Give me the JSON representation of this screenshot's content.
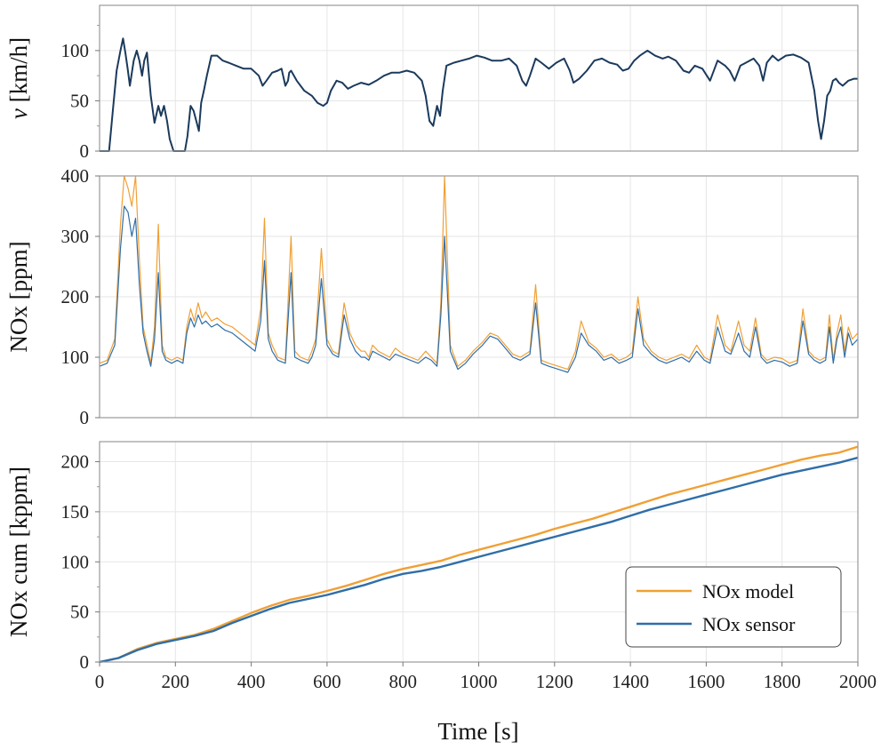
{
  "colors": {
    "model": "#f0a035",
    "sensor": "#2f6ea8",
    "speed": "#1b3a5c",
    "frame": "#9a9a9a",
    "grid": "#e6e6e6"
  },
  "chart_data": [
    {
      "type": "line",
      "ylabel_var": "v",
      "ylabel_unit": " [km/h]",
      "xlim": [
        0,
        2000
      ],
      "ylim": [
        0,
        145
      ],
      "yticks": [
        "0",
        "50",
        "100"
      ],
      "yticks_values": [
        0,
        50,
        100
      ],
      "grid": true,
      "series": [
        {
          "x": [
            0,
            25,
            35,
            45,
            55,
            62,
            68,
            74,
            80,
            90,
            98,
            105,
            112,
            118,
            125,
            135,
            145,
            155,
            162,
            170,
            178,
            185,
            195,
            210,
            225,
            232,
            240,
            248,
            255,
            262,
            268,
            275,
            283,
            295,
            310,
            325,
            340,
            360,
            380,
            400,
            420,
            430,
            440,
            455,
            470,
            480,
            490,
            497,
            500,
            505,
            520,
            540,
            560,
            575,
            590,
            600,
            610,
            625,
            640,
            655,
            670,
            690,
            710,
            730,
            750,
            770,
            790,
            810,
            830,
            850,
            860,
            870,
            880,
            890,
            898,
            905,
            915,
            935,
            955,
            975,
            995,
            1015,
            1035,
            1060,
            1080,
            1100,
            1115,
            1125,
            1135,
            1150,
            1165,
            1185,
            1205,
            1225,
            1240,
            1250,
            1265,
            1285,
            1305,
            1325,
            1345,
            1365,
            1380,
            1395,
            1410,
            1425,
            1445,
            1465,
            1485,
            1500,
            1520,
            1540,
            1555,
            1570,
            1590,
            1610,
            1630,
            1650,
            1662,
            1675,
            1690,
            1705,
            1725,
            1740,
            1750,
            1760,
            1775,
            1790,
            1810,
            1830,
            1850,
            1870,
            1885,
            1895,
            1903,
            1911,
            1919,
            1927,
            1934,
            1942,
            1950,
            1960,
            1975,
            1990,
            2000
          ],
          "y": [
            0,
            0,
            40,
            80,
            100,
            112,
            98,
            82,
            65,
            90,
            100,
            90,
            75,
            90,
            98,
            55,
            28,
            45,
            35,
            45,
            30,
            12,
            0,
            0,
            0,
            15,
            45,
            40,
            30,
            20,
            48,
            60,
            75,
            95,
            95,
            90,
            88,
            85,
            82,
            82,
            75,
            65,
            70,
            78,
            80,
            82,
            65,
            70,
            78,
            80,
            70,
            60,
            55,
            48,
            45,
            48,
            60,
            70,
            68,
            62,
            65,
            68,
            66,
            70,
            75,
            78,
            78,
            80,
            78,
            70,
            55,
            30,
            25,
            45,
            35,
            60,
            85,
            88,
            90,
            92,
            95,
            93,
            90,
            90,
            92,
            85,
            70,
            65,
            75,
            92,
            88,
            82,
            88,
            92,
            80,
            68,
            72,
            80,
            90,
            92,
            88,
            86,
            80,
            82,
            90,
            95,
            100,
            95,
            92,
            94,
            90,
            80,
            78,
            85,
            82,
            70,
            90,
            85,
            80,
            70,
            85,
            88,
            92,
            85,
            70,
            88,
            95,
            90,
            95,
            96,
            93,
            88,
            60,
            30,
            12,
            30,
            55,
            60,
            70,
            72,
            68,
            65,
            70,
            72,
            72
          ]
        }
      ]
    },
    {
      "type": "line",
      "ylabel": "NOx [ppm]",
      "xlim": [
        0,
        2000
      ],
      "ylim": [
        0,
        400
      ],
      "yticks": [
        "0",
        "100",
        "200",
        "300",
        "400"
      ],
      "yticks_values": [
        0,
        100,
        200,
        300,
        400
      ],
      "grid": true,
      "series": [
        {
          "name": "NOx model",
          "x": [
            0,
            20,
            40,
            55,
            65,
            75,
            85,
            95,
            105,
            115,
            125,
            135,
            145,
            155,
            165,
            175,
            190,
            205,
            220,
            230,
            240,
            250,
            260,
            270,
            280,
            295,
            310,
            330,
            350,
            370,
            390,
            410,
            425,
            435,
            445,
            455,
            470,
            490,
            505,
            515,
            530,
            550,
            560,
            570,
            585,
            600,
            615,
            630,
            645,
            660,
            675,
            690,
            700,
            710,
            720,
            735,
            750,
            765,
            780,
            800,
            820,
            840,
            860,
            875,
            890,
            900,
            910,
            925,
            945,
            965,
            985,
            1010,
            1030,
            1050,
            1070,
            1090,
            1110,
            1135,
            1150,
            1165,
            1185,
            1210,
            1235,
            1255,
            1270,
            1290,
            1310,
            1330,
            1350,
            1370,
            1390,
            1405,
            1420,
            1435,
            1455,
            1475,
            1495,
            1515,
            1535,
            1555,
            1575,
            1595,
            1610,
            1630,
            1650,
            1665,
            1685,
            1700,
            1715,
            1730,
            1745,
            1760,
            1780,
            1800,
            1820,
            1840,
            1855,
            1870,
            1885,
            1900,
            1915,
            1925,
            1935,
            1945,
            1955,
            1965,
            1975,
            1985,
            2000
          ],
          "y": [
            90,
            95,
            130,
            320,
            400,
            380,
            350,
            400,
            260,
            150,
            120,
            90,
            150,
            320,
            120,
            100,
            95,
            100,
            95,
            150,
            180,
            160,
            190,
            165,
            175,
            160,
            165,
            155,
            150,
            140,
            130,
            120,
            180,
            330,
            140,
            120,
            100,
            95,
            300,
            110,
            100,
            95,
            110,
            130,
            280,
            130,
            110,
            105,
            190,
            140,
            120,
            110,
            110,
            100,
            120,
            110,
            105,
            100,
            115,
            105,
            100,
            95,
            110,
            100,
            90,
            190,
            400,
            120,
            85,
            95,
            110,
            125,
            140,
            135,
            120,
            105,
            100,
            110,
            220,
            95,
            90,
            85,
            80,
            110,
            160,
            125,
            115,
            100,
            105,
            95,
            100,
            108,
            200,
            130,
            110,
            100,
            95,
            100,
            105,
            98,
            120,
            100,
            95,
            170,
            120,
            110,
            160,
            120,
            110,
            165,
            105,
            95,
            100,
            98,
            90,
            95,
            180,
            110,
            100,
            95,
            100,
            170,
            95,
            140,
            170,
            110,
            150,
            130,
            140
          ]
        },
        {
          "name": "NOx sensor",
          "x": [
            0,
            20,
            40,
            55,
            65,
            75,
            85,
            95,
            105,
            115,
            125,
            135,
            145,
            155,
            165,
            175,
            190,
            205,
            220,
            230,
            240,
            250,
            260,
            270,
            280,
            295,
            310,
            330,
            350,
            370,
            390,
            410,
            425,
            435,
            445,
            455,
            470,
            490,
            505,
            515,
            530,
            550,
            560,
            570,
            585,
            600,
            615,
            630,
            645,
            660,
            675,
            690,
            700,
            710,
            720,
            735,
            750,
            765,
            780,
            800,
            820,
            840,
            860,
            875,
            890,
            900,
            910,
            925,
            945,
            965,
            985,
            1010,
            1030,
            1050,
            1070,
            1090,
            1110,
            1135,
            1150,
            1165,
            1185,
            1210,
            1235,
            1255,
            1270,
            1290,
            1310,
            1330,
            1350,
            1370,
            1390,
            1405,
            1420,
            1435,
            1455,
            1475,
            1495,
            1515,
            1535,
            1555,
            1575,
            1595,
            1610,
            1630,
            1650,
            1665,
            1685,
            1700,
            1715,
            1730,
            1745,
            1760,
            1780,
            1800,
            1820,
            1840,
            1855,
            1870,
            1885,
            1900,
            1915,
            1925,
            1935,
            1945,
            1955,
            1965,
            1975,
            1985,
            2000
          ],
          "y": [
            85,
            90,
            120,
            280,
            350,
            340,
            300,
            330,
            220,
            140,
            110,
            85,
            130,
            240,
            110,
            95,
            90,
            95,
            90,
            140,
            165,
            150,
            170,
            155,
            160,
            150,
            155,
            145,
            140,
            130,
            120,
            110,
            160,
            260,
            130,
            110,
            95,
            90,
            240,
            100,
            95,
            90,
            100,
            120,
            230,
            120,
            105,
            100,
            170,
            130,
            110,
            100,
            100,
            95,
            110,
            105,
            100,
            95,
            105,
            100,
            95,
            90,
            100,
            95,
            85,
            170,
            300,
            110,
            80,
            90,
            105,
            120,
            135,
            130,
            115,
            100,
            95,
            105,
            190,
            90,
            85,
            80,
            75,
            100,
            140,
            120,
            110,
            95,
            100,
            90,
            95,
            100,
            180,
            120,
            105,
            95,
            90,
            95,
            100,
            92,
            110,
            95,
            90,
            150,
            110,
            105,
            140,
            110,
            100,
            150,
            100,
            90,
            95,
            92,
            85,
            90,
            160,
            105,
            95,
            90,
            95,
            150,
            90,
            130,
            150,
            100,
            140,
            120,
            130
          ]
        }
      ]
    },
    {
      "type": "line",
      "ylabel": "NOx cum [kppm]",
      "xlabel": "Time [s]",
      "xlim": [
        0,
        2000
      ],
      "ylim": [
        0,
        220
      ],
      "xticks": [
        "0",
        "200",
        "400",
        "600",
        "800",
        "1000",
        "1200",
        "1400",
        "1600",
        "1800",
        "2000"
      ],
      "xticks_values": [
        0,
        200,
        400,
        600,
        800,
        1000,
        1200,
        1400,
        1600,
        1800,
        2000
      ],
      "yticks": [
        "0",
        "50",
        "100",
        "150",
        "200"
      ],
      "yticks_values": [
        0,
        50,
        100,
        150,
        200
      ],
      "grid": true,
      "legend": "bottom-right",
      "series": [
        {
          "name": "NOx model",
          "x": [
            0,
            50,
            100,
            150,
            200,
            250,
            300,
            350,
            400,
            450,
            500,
            550,
            600,
            650,
            700,
            750,
            800,
            850,
            900,
            950,
            1000,
            1050,
            1100,
            1150,
            1200,
            1250,
            1300,
            1350,
            1400,
            1450,
            1500,
            1550,
            1600,
            1650,
            1700,
            1750,
            1800,
            1850,
            1900,
            1950,
            2000
          ],
          "y": [
            0,
            4,
            13,
            19,
            23,
            27,
            33,
            41,
            49,
            56,
            62,
            66,
            71,
            76,
            82,
            88,
            93,
            97,
            101,
            107,
            112,
            117,
            122,
            127,
            133,
            138,
            143,
            149,
            155,
            161,
            167,
            172,
            177,
            182,
            187,
            192,
            197,
            202,
            206,
            209,
            215
          ]
        },
        {
          "name": "NOx sensor",
          "x": [
            0,
            50,
            100,
            150,
            200,
            250,
            300,
            350,
            400,
            450,
            500,
            550,
            600,
            650,
            700,
            750,
            800,
            850,
            900,
            950,
            1000,
            1050,
            1100,
            1150,
            1200,
            1250,
            1300,
            1350,
            1400,
            1450,
            1500,
            1550,
            1600,
            1650,
            1700,
            1750,
            1800,
            1850,
            1900,
            1950,
            2000
          ],
          "y": [
            0,
            4,
            12,
            18,
            22,
            26,
            31,
            39,
            46,
            53,
            59,
            63,
            67,
            72,
            77,
            83,
            88,
            91,
            95,
            100,
            105,
            110,
            115,
            120,
            125,
            130,
            135,
            140,
            146,
            152,
            157,
            162,
            167,
            172,
            177,
            182,
            187,
            191,
            195,
            199,
            204
          ]
        }
      ]
    }
  ]
}
